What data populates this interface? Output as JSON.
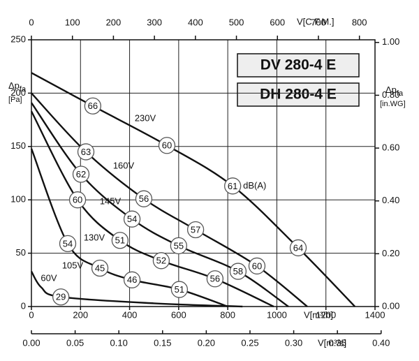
{
  "chart_data": {
    "type": "line",
    "annotations": [
      "DV 280-4 E",
      "DH 280-4 E"
    ],
    "db_unit": "dB(A)",
    "x_label": "V[m³/h]",
    "x2_label": "V[C.F.M.]",
    "x3_label": "V[m³/s]",
    "y_label": {
      "main": "Δp",
      "sub": "fa",
      "unit": "[Pa]"
    },
    "y2_label": {
      "main": "Δp",
      "sub": "fa",
      "unit": "[in.WG]"
    },
    "xlim": [
      0,
      1400
    ],
    "xticks": [
      0,
      200,
      400,
      600,
      800,
      1000,
      1200,
      1400
    ],
    "x2lim": [
      0,
      838
    ],
    "x2ticks": [
      0,
      100,
      200,
      300,
      400,
      500,
      600,
      700,
      800
    ],
    "x3lim": [
      0,
      0.393
    ],
    "x3ticks": [
      {
        "value": 0,
        "label": "0.00"
      },
      {
        "value": 0.05,
        "label": "0.05"
      },
      {
        "value": 0.1,
        "label": "0.10"
      },
      {
        "value": 0.15,
        "label": "0.15"
      },
      {
        "value": 0.2,
        "label": "0.20"
      },
      {
        "value": 0.25,
        "label": "0.25"
      },
      {
        "value": 0.3,
        "label": "0.30"
      },
      {
        "value": 0.35,
        "label": "0.35"
      },
      {
        "value": 0.4,
        "label": "0.40"
      }
    ],
    "ylim": [
      0,
      250
    ],
    "yticks": [
      0,
      50,
      100,
      150,
      200,
      250
    ],
    "y2lim": [
      0,
      1.01
    ],
    "y2ticks": [
      {
        "value": 0,
        "label": "0.00"
      },
      {
        "value": 0.2,
        "label": "0.20"
      },
      {
        "value": 0.4,
        "label": "0.40"
      },
      {
        "value": 0.6,
        "label": "0.60"
      },
      {
        "value": 0.8,
        "label": "0.80"
      },
      {
        "value": 1,
        "label": "1.00"
      }
    ],
    "grid": true,
    "series": [
      {
        "name": "230V",
        "x": [
          0,
          250,
          552,
          820,
          1087,
          1318
        ],
        "values": [
          219,
          188,
          151,
          113,
          55,
          0
        ],
        "db": [
          null,
          66,
          60,
          61,
          64,
          null
        ]
      },
      {
        "name": "160V",
        "x": [
          0,
          222,
          458,
          669,
          919,
          1124
        ],
        "values": [
          200,
          145,
          101,
          72,
          38,
          0
        ],
        "db": [
          null,
          63,
          56,
          57,
          60,
          null
        ]
      },
      {
        "name": "145V",
        "x": [
          0,
          202,
          410,
          600,
          842,
          1047
        ],
        "values": [
          191,
          124,
          82,
          57,
          33,
          0
        ],
        "db": [
          null,
          62,
          54,
          55,
          58,
          null
        ]
      },
      {
        "name": "130V",
        "x": [
          0,
          188,
          361,
          529,
          748,
          987
        ],
        "values": [
          183,
          100,
          62,
          43,
          26,
          0
        ],
        "db": [
          null,
          60,
          51,
          52,
          56,
          null
        ]
      },
      {
        "name": "105V",
        "x": [
          0,
          148,
          279,
          410,
          603,
          800
        ],
        "values": [
          148,
          59,
          36,
          25,
          16,
          0
        ],
        "db": [
          null,
          54,
          45,
          46,
          51,
          null
        ]
      },
      {
        "name": "60V",
        "x": [
          0,
          40,
          120,
          500,
          860
        ],
        "values": [
          33,
          18,
          9,
          3,
          0
        ],
        "db": [
          null,
          null,
          29,
          null,
          null
        ]
      }
    ]
  }
}
